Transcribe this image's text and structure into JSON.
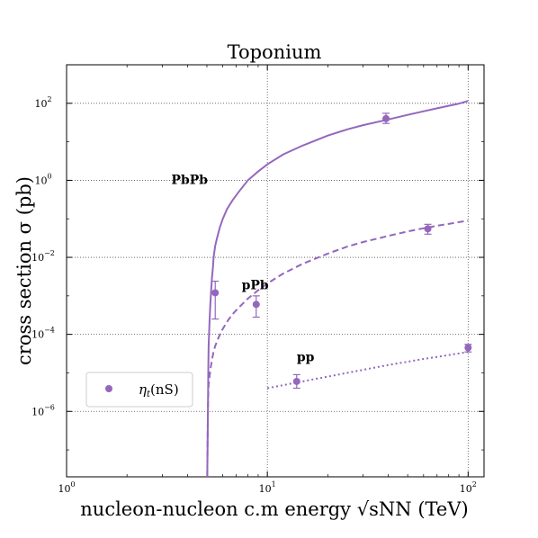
{
  "chart_data": {
    "type": "line",
    "title": "Toponium",
    "xlabel": "nucleon-nucleon c.m energy",
    "xlabel_math": "√sNN",
    "xlabel_unit": "(TeV)",
    "ylabel": "cross section σ (pb)",
    "xscale": "log",
    "yscale": "log",
    "xlim": [
      1,
      120
    ],
    "ylim": [
      2e-08,
      1000
    ],
    "grid": true,
    "x_ticks": [
      {
        "value": 1,
        "base": "10",
        "exp": "0"
      },
      {
        "value": 10,
        "base": "10",
        "exp": "1"
      },
      {
        "value": 100,
        "base": "10",
        "exp": "2"
      }
    ],
    "y_ticks": [
      {
        "value": 1e-06,
        "base": "10",
        "exp": "−6"
      },
      {
        "value": 0.0001,
        "base": "10",
        "exp": "−4"
      },
      {
        "value": 0.01,
        "base": "10",
        "exp": "−2"
      },
      {
        "value": 1,
        "base": "10",
        "exp": "0"
      },
      {
        "value": 100,
        "base": "10",
        "exp": "2"
      }
    ],
    "color": "#9467bd",
    "series": [
      {
        "label": "PbPb",
        "style": "solid",
        "x": [
          5.02,
          5.04,
          5.06,
          5.08,
          5.1,
          5.15,
          5.2,
          5.25,
          5.3,
          5.35,
          5.4,
          5.5,
          5.6,
          5.8,
          6.0,
          6.3,
          6.7,
          7.2,
          8.0,
          9.0,
          10.0,
          12.0,
          15.0,
          20.0,
          25.0,
          30.0,
          40.0,
          50.0,
          60.0,
          70.0,
          80.0,
          90.0,
          100.0
        ],
        "y": [
          2e-08,
          1.5e-07,
          1.2e-06,
          1.1e-05,
          5e-05,
          0.0002,
          0.0006,
          0.0014,
          0.003,
          0.005,
          0.01,
          0.02,
          0.03,
          0.06,
          0.1,
          0.18,
          0.3,
          0.5,
          1.0,
          1.7,
          2.6,
          4.7,
          8.0,
          14.5,
          21.0,
          27.0,
          38.0,
          50.0,
          62.0,
          74.0,
          86.0,
          98.0,
          115.0
        ]
      },
      {
        "label": "pPb",
        "style": "dashed",
        "x": [
          5.02,
          5.04,
          5.06,
          5.08,
          5.1,
          5.2,
          5.3,
          5.4,
          5.5,
          5.7,
          5.9,
          6.1,
          6.4,
          6.8,
          7.3,
          8.0,
          9.0,
          10.0,
          12.0,
          15.0,
          20.0,
          25.0,
          30.0,
          40.0,
          50.0,
          60.0,
          70.0,
          80.0,
          90.0,
          100.0
        ],
        "y": [
          2e-08,
          2e-07,
          1.2e-06,
          3e-06,
          5e-06,
          1.2e-05,
          2.2e-05,
          3.6e-05,
          5e-05,
          8e-05,
          0.00012,
          0.00016,
          0.00024,
          0.00036,
          0.00053,
          0.00085,
          0.0014,
          0.0021,
          0.0038,
          0.0068,
          0.0125,
          0.019,
          0.025,
          0.036,
          0.047,
          0.057,
          0.066,
          0.074,
          0.082,
          0.09
        ]
      },
      {
        "label": "pp",
        "style": "dotted",
        "x": [
          10.0,
          12.0,
          14.0,
          17.0,
          20.0,
          25.0,
          30.0,
          40.0,
          50.0,
          60.0,
          70.0,
          80.0,
          90.0,
          100.0
        ],
        "y": [
          4e-06,
          4.8e-06,
          5.6e-06,
          6.8e-06,
          8e-06,
          1e-05,
          1.2e-05,
          1.6e-05,
          1.95e-05,
          2.3e-05,
          2.6e-05,
          2.9e-05,
          3.2e-05,
          3.5e-05
        ]
      }
    ],
    "points": [
      {
        "x": 5.5,
        "y": 0.0012,
        "ylo": 0.00025,
        "yhi": 0.0024
      },
      {
        "x": 8.8,
        "y": 0.0006,
        "ylo": 0.00028,
        "yhi": 0.001
      },
      {
        "x": 14.0,
        "y": 6e-06,
        "ylo": 4e-06,
        "yhi": 9e-06
      },
      {
        "x": 39.0,
        "y": 40.0,
        "ylo": 30.0,
        "yhi": 55.0
      },
      {
        "x": 63.0,
        "y": 0.055,
        "ylo": 0.04,
        "yhi": 0.072
      },
      {
        "x": 100.0,
        "y": 4.5e-05,
        "ylo": 3.5e-05,
        "yhi": 5.5e-05
      }
    ],
    "annotations": [
      {
        "text": "PbPb",
        "x": 4.1,
        "y": 0.8
      },
      {
        "text": "pPb",
        "x": 8.7,
        "y": 0.0015
      },
      {
        "text": "pp",
        "x": 15.5,
        "y": 2e-05
      }
    ],
    "legend": {
      "label": "ηt(nS)",
      "main": "η",
      "sub": "t",
      "arg": "(nS)",
      "placement": "lower-left"
    }
  }
}
